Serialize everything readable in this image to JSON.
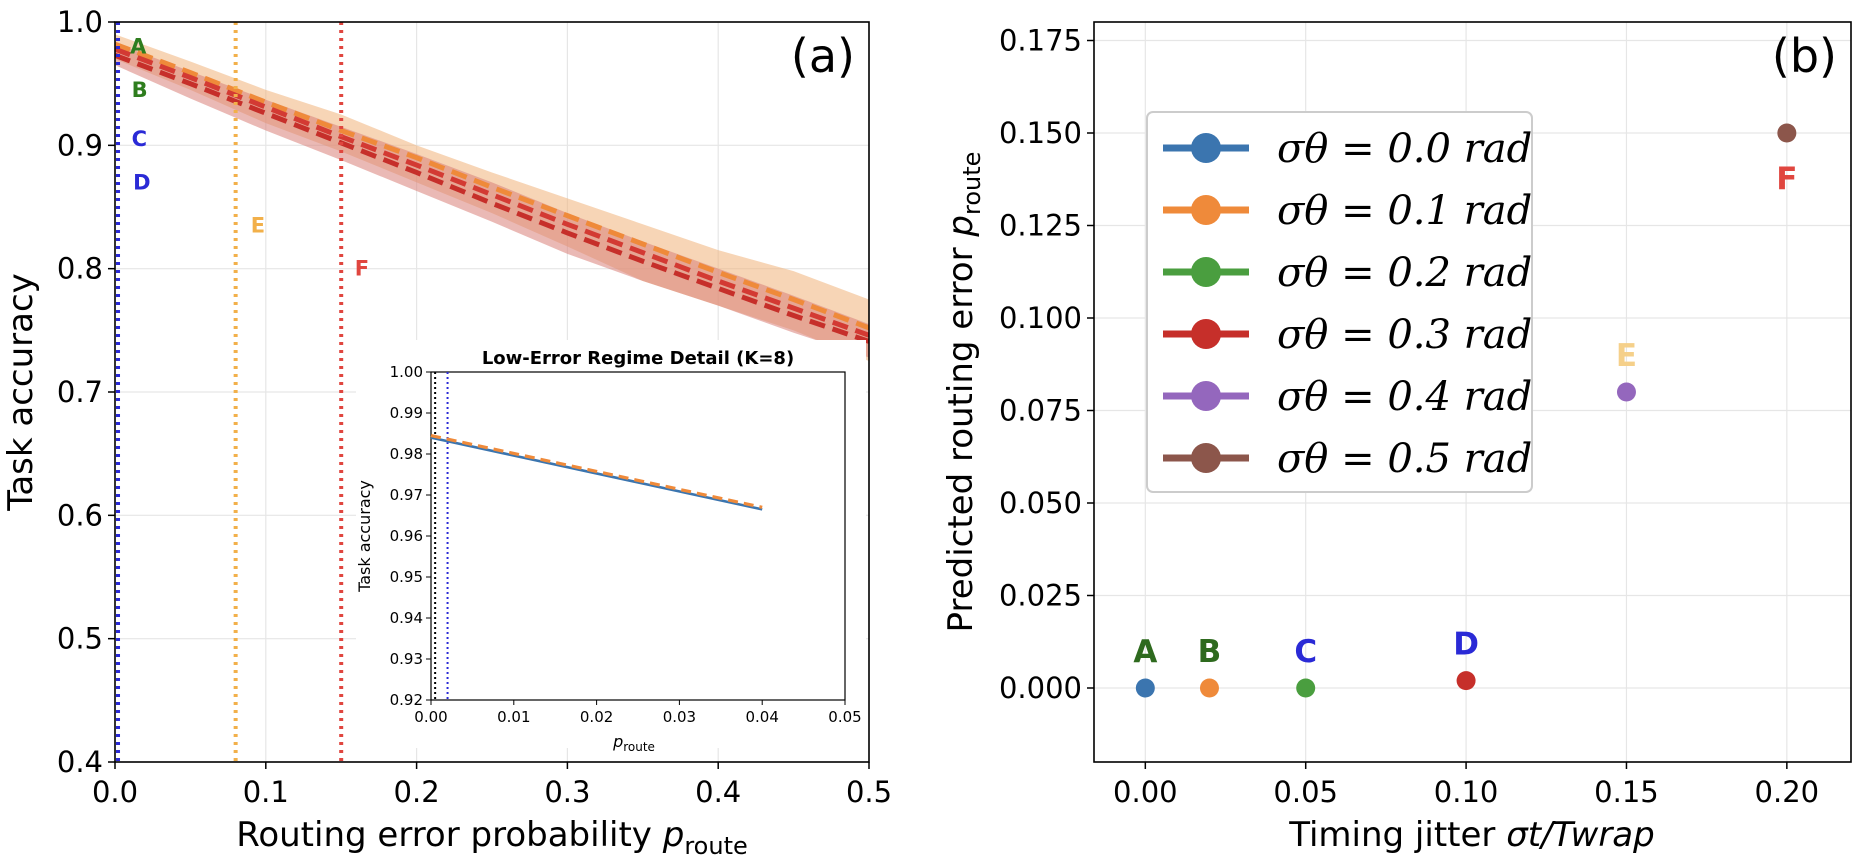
{
  "chart_data": [
    {
      "panel": "(a)",
      "type": "line",
      "xlabel": "Routing error probability",
      "xlabel_symbol": "p",
      "xlabel_sub": "route",
      "ylabel": "Task accuracy",
      "xlim": [
        0.0,
        0.5
      ],
      "ylim": [
        0.4,
        1.0
      ],
      "xticks": [
        0.0,
        0.1,
        0.2,
        0.3,
        0.4,
        0.5
      ],
      "yticks": [
        0.4,
        0.5,
        0.6,
        0.7,
        0.8,
        0.9,
        1.0
      ],
      "series": [
        {
          "name": "band-orange",
          "color": "#f0b27a",
          "x": [
            0.0,
            0.05,
            0.1,
            0.15,
            0.2,
            0.25,
            0.3,
            0.35,
            0.4,
            0.45,
            0.5
          ],
          "upper": [
            0.99,
            0.968,
            0.945,
            0.925,
            0.9,
            0.878,
            0.857,
            0.836,
            0.815,
            0.798,
            0.775
          ],
          "lower": [
            0.97,
            0.945,
            0.918,
            0.895,
            0.87,
            0.845,
            0.818,
            0.79,
            0.77,
            0.75,
            0.725
          ]
        },
        {
          "name": "band-red",
          "color": "#d98079",
          "x": [
            0.0,
            0.05,
            0.1,
            0.15,
            0.2,
            0.25,
            0.3,
            0.35,
            0.4,
            0.45,
            0.5
          ],
          "upper": [
            0.983,
            0.96,
            0.937,
            0.915,
            0.893,
            0.87,
            0.845,
            0.822,
            0.8,
            0.778,
            0.755
          ],
          "lower": [
            0.965,
            0.938,
            0.912,
            0.888,
            0.863,
            0.838,
            0.812,
            0.79,
            0.77,
            0.748,
            0.728
          ]
        },
        {
          "name": "mean-orange",
          "color": "#ef8a3a",
          "x": [
            0.0,
            0.05,
            0.1,
            0.15,
            0.2,
            0.25,
            0.3,
            0.35,
            0.4,
            0.45,
            0.5
          ],
          "values": [
            0.982,
            0.959,
            0.935,
            0.912,
            0.89,
            0.866,
            0.843,
            0.82,
            0.797,
            0.775,
            0.752
          ]
        },
        {
          "name": "mean-red-1",
          "color": "#d33a33",
          "x": [
            0.0,
            0.05,
            0.1,
            0.15,
            0.2,
            0.25,
            0.3,
            0.35,
            0.4,
            0.45,
            0.5
          ],
          "values": [
            0.978,
            0.955,
            0.931,
            0.907,
            0.884,
            0.86,
            0.836,
            0.813,
            0.79,
            0.768,
            0.746
          ]
        },
        {
          "name": "mean-red-2",
          "color": "#c62f2a",
          "x": [
            0.0,
            0.05,
            0.1,
            0.15,
            0.2,
            0.25,
            0.3,
            0.35,
            0.4,
            0.45,
            0.5
          ],
          "values": [
            0.973,
            0.95,
            0.926,
            0.902,
            0.878,
            0.853,
            0.829,
            0.806,
            0.784,
            0.762,
            0.741
          ]
        }
      ],
      "vlines": [
        {
          "x": 0.002,
          "color": "#2a2ad6"
        },
        {
          "x": 0.08,
          "color": "#f2b04a"
        },
        {
          "x": 0.15,
          "color": "#e0463f"
        }
      ],
      "point_labels": [
        {
          "text": "A",
          "x": 0.01,
          "y": 0.98,
          "color": "#2e7d1e"
        },
        {
          "text": "B",
          "x": 0.011,
          "y": 0.945,
          "color": "#2e7d1e"
        },
        {
          "text": "C",
          "x": 0.011,
          "y": 0.905,
          "color": "#2a2ad6"
        },
        {
          "text": "D",
          "x": 0.012,
          "y": 0.87,
          "color": "#2a2ad6"
        },
        {
          "text": "E",
          "x": 0.09,
          "y": 0.835,
          "color": "#f2b04a"
        },
        {
          "text": "F",
          "x": 0.159,
          "y": 0.8,
          "color": "#e0463f"
        }
      ],
      "inset": {
        "title": "Low-Error Regime Detail (K=8)",
        "xlabel_symbol": "p",
        "xlabel_sub": "route",
        "ylabel": "Task accuracy",
        "xlim": [
          0.0,
          0.05
        ],
        "ylim": [
          0.92,
          1.0
        ],
        "xticks": [
          "0.00",
          "0.01",
          "0.02",
          "0.03",
          "0.04",
          "0.05"
        ],
        "yticks": [
          "0.92",
          "0.93",
          "0.94",
          "0.95",
          "0.96",
          "0.97",
          "0.98",
          "0.99",
          "1.00"
        ],
        "series": [
          {
            "name": "blue-line",
            "color": "#3b75af",
            "x": [
              0.0,
              0.04
            ],
            "values": [
              0.984,
              0.9665
            ]
          },
          {
            "name": "orange-dashed",
            "color": "#ef8a3a",
            "x": [
              0.0,
              0.04
            ],
            "values": [
              0.9845,
              0.967
            ]
          }
        ],
        "vlines": [
          {
            "x": 0.0005,
            "color": "#000000"
          },
          {
            "x": 0.002,
            "color": "#2a2ad6"
          }
        ]
      }
    },
    {
      "panel": "(b)",
      "type": "scatter",
      "xlabel": "Timing jitter",
      "xlabel_math": "σt/Twrap",
      "ylabel": "Predicted routing error",
      "ylabel_symbol": "p",
      "ylabel_sub": "route",
      "xlim": [
        -0.016,
        0.22
      ],
      "ylim": [
        -0.02,
        0.18
      ],
      "xticks": [
        "0.00",
        "0.05",
        "0.10",
        "0.15",
        "0.20"
      ],
      "yticks": [
        "0.000",
        "0.025",
        "0.050",
        "0.075",
        "0.100",
        "0.125",
        "0.150",
        "0.175"
      ],
      "points": [
        {
          "label": "A",
          "x": 0.0,
          "y": 0.0,
          "color": "#3b75af",
          "label_color": "#2e6a1e"
        },
        {
          "label": "B",
          "x": 0.02,
          "y": 0.0,
          "color": "#ef8a3a",
          "label_color": "#2e6a1e"
        },
        {
          "label": "C",
          "x": 0.05,
          "y": 0.0,
          "color": "#4a9e3f",
          "label_color": "#2a2ad6"
        },
        {
          "label": "D",
          "x": 0.1,
          "y": 0.002,
          "color": "#c62f2a",
          "label_color": "#2a2ad6"
        },
        {
          "label": "E",
          "x": 0.15,
          "y": 0.08,
          "color": "#9467bd",
          "label_color": "#f5d08a"
        },
        {
          "label": "F",
          "x": 0.2,
          "y": 0.15,
          "color": "#8c564b",
          "label_color": "#e0463f"
        }
      ],
      "legend": {
        "placement": "upper-left",
        "entries": [
          {
            "label": "σθ = 0.0 rad",
            "color": "#3b75af"
          },
          {
            "label": "σθ = 0.1 rad",
            "color": "#ef8a3a"
          },
          {
            "label": "σθ = 0.2 rad",
            "color": "#4a9e3f"
          },
          {
            "label": "σθ = 0.3 rad",
            "color": "#c62f2a"
          },
          {
            "label": "σθ = 0.4 rad",
            "color": "#9467bd"
          },
          {
            "label": "σθ = 0.5 rad",
            "color": "#8c564b"
          }
        ]
      }
    }
  ]
}
